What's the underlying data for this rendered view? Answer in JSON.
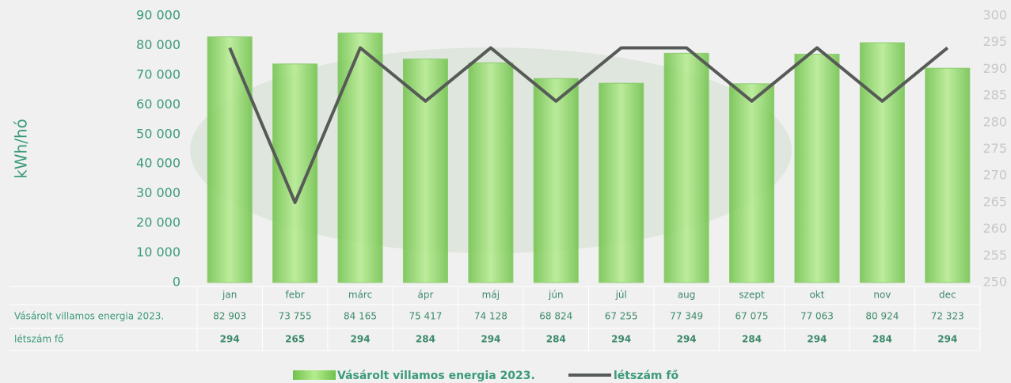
{
  "chart_data": {
    "type": "bar",
    "y_label": "kWh/hó",
    "categories": [
      "jan",
      "febr",
      "márc",
      "ápr",
      "máj",
      "jún",
      "júl",
      "aug",
      "szept",
      "okt",
      "nov",
      "dec"
    ],
    "series": [
      {
        "name": "Vásárolt villamos energia 2023.",
        "type": "bar",
        "color": "#8fd66a",
        "values": [
          82903,
          73755,
          84165,
          75417,
          74128,
          68824,
          67255,
          77349,
          67075,
          77063,
          80924,
          72323
        ],
        "value_labels": [
          "82 903",
          "73 755",
          "84 165",
          "75 417",
          "74 128",
          "68 824",
          "67 255",
          "77 349",
          "67 075",
          "77 063",
          "80 924",
          "72 323"
        ]
      },
      {
        "name": "létszám fő",
        "type": "line",
        "axis": "y2",
        "color": "#575b57",
        "values": [
          294,
          265,
          294,
          284,
          294,
          284,
          294,
          294,
          284,
          294,
          284,
          294
        ]
      }
    ],
    "ylim": [
      0,
      90000
    ],
    "yticks": [
      {
        "value": 0,
        "label": "0"
      },
      {
        "value": 10000,
        "label": "10 000"
      },
      {
        "value": 20000,
        "label": "20 000"
      },
      {
        "value": 30000,
        "label": "30 000"
      },
      {
        "value": 40000,
        "label": "40 000"
      },
      {
        "value": 50000,
        "label": "50 000"
      },
      {
        "value": 60000,
        "label": "60 000"
      },
      {
        "value": 70000,
        "label": "70 000"
      },
      {
        "value": 80000,
        "label": "80 000"
      },
      {
        "value": 90000,
        "label": "90 000"
      }
    ],
    "y2lim": [
      250,
      300
    ],
    "y2ticks": [
      250,
      255,
      260,
      265,
      270,
      275,
      280,
      285,
      290,
      295,
      300
    ],
    "grid": false,
    "legend": "bottom"
  }
}
